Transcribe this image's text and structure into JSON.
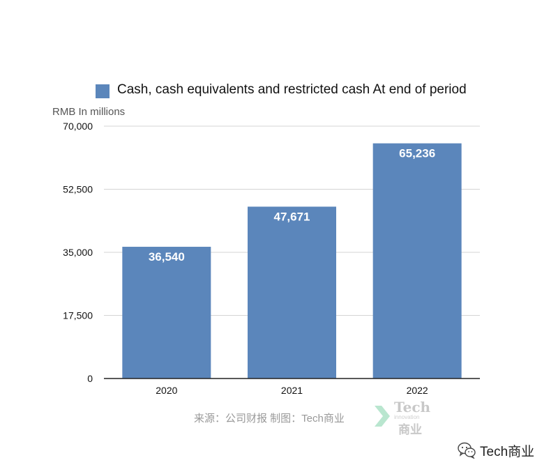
{
  "chart_data": {
    "type": "bar",
    "categories": [
      "2020",
      "2021",
      "2022"
    ],
    "series": [
      {
        "name": "Cash, cash equivalents and restricted cash At end of period",
        "values": [
          36540,
          47671,
          65236
        ],
        "value_labels": [
          "36,540",
          "47,671",
          "65,236"
        ]
      }
    ],
    "ylabel": "RMB In millions",
    "ylim": [
      0,
      70000
    ],
    "yticks": [
      0,
      17500,
      35000,
      52500,
      70000
    ],
    "ytick_labels": [
      "0",
      "17,500",
      "35,000",
      "52,500",
      "70,000"
    ],
    "grid": true,
    "legend_position": "top",
    "bar_color": "#5b86bb",
    "data_label_color": "#ffffff"
  },
  "footer": {
    "source": "来源：公司财报  制图：Tech商业"
  },
  "watermark": {
    "logo_word": "Tech",
    "logo_sub": "innovation",
    "logo_cn": "商业",
    "logo_color": "#c8c8c8",
    "chevron_color": "#b9e6cf"
  },
  "brand": {
    "name": "Tech商业",
    "icon": "wechat-icon"
  }
}
